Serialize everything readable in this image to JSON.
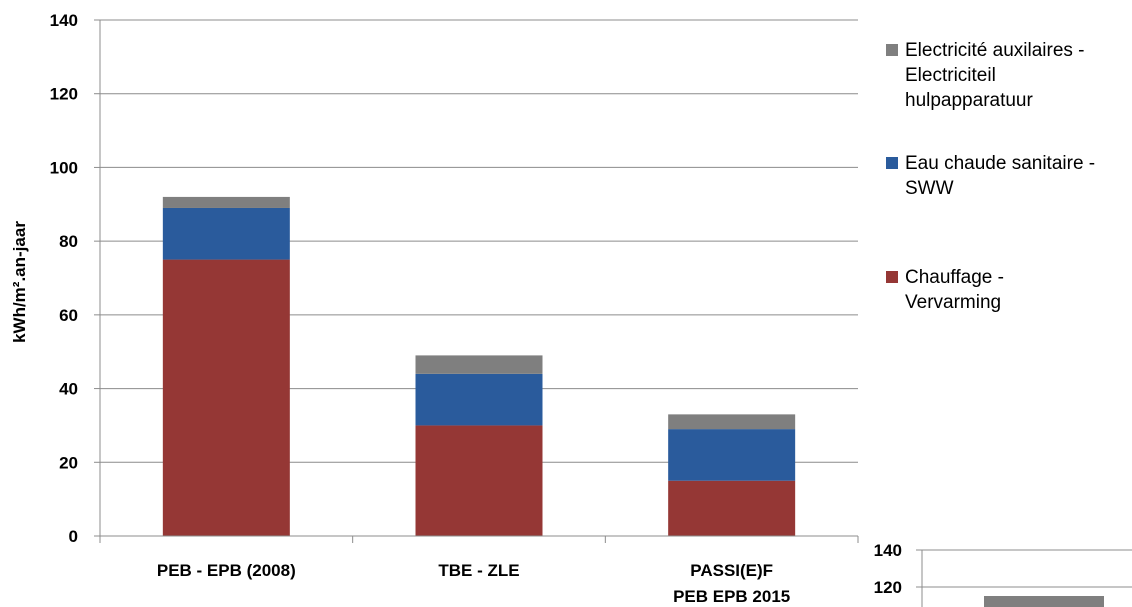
{
  "chart_data": [
    {
      "type": "bar",
      "stacked": true,
      "categories": [
        "PEB - EPB (2008)",
        "TBE - ZLE",
        "PASSI(E)F PEB EPB 2015"
      ],
      "category_label_lines": [
        [
          "PEB - EPB (2008)"
        ],
        [
          "TBE - ZLE"
        ],
        [
          "PASSI(E)F",
          "PEB EPB 2015"
        ]
      ],
      "series": [
        {
          "name": "Chauffage - Vervarming",
          "values": [
            75,
            30,
            15
          ],
          "color": "#953735"
        },
        {
          "name": "Eau chaude sanitaire - SWW",
          "values": [
            14,
            14,
            14
          ],
          "color": "#2a5b9c"
        },
        {
          "name": "Electricité auxilaires - Electriciteil hulpapparatuur",
          "values": [
            3,
            5,
            4
          ],
          "color": "#7f7f7f"
        }
      ],
      "legend_order": [
        2,
        1,
        0
      ],
      "legend_lines": [
        [
          "Electricité auxilaires -",
          "Electriciteil",
          "hulpapparatuur"
        ],
        [
          "Eau chaude sanitaire -",
          "SWW"
        ],
        [
          "Chauffage -",
          "Vervarming"
        ]
      ],
      "ylabel": "kWh/m².an-jaar",
      "ylim": [
        0,
        140
      ],
      "yticks": [
        0,
        20,
        40,
        60,
        80,
        100,
        120,
        140
      ],
      "grid": true,
      "legend_position": "right"
    },
    {
      "type": "bar",
      "partial": true,
      "yticks_visible": [
        140,
        120
      ],
      "ylim": [
        0,
        140
      ],
      "series": [
        {
          "name": "",
          "values": [
            null
          ],
          "color": "#7f7f7f"
        }
      ]
    }
  ]
}
